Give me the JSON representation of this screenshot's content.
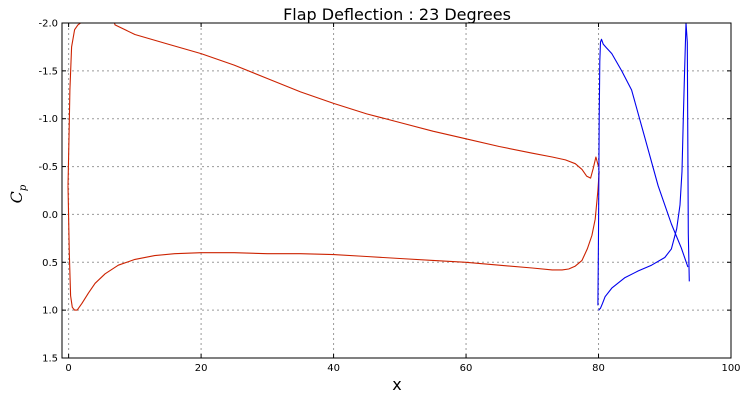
{
  "chart_data": {
    "type": "line",
    "title": "Flap Deflection : 23 Degrees",
    "xlabel": "x",
    "ylabel_main": "C",
    "ylabel_sub": "p",
    "xlim": [
      -1,
      100
    ],
    "ylim": [
      1.5,
      -2.0
    ],
    "y_inverted": true,
    "grid": true,
    "xticks": [
      0,
      20,
      40,
      60,
      80,
      100
    ],
    "xtick_labels": [
      "0",
      "20",
      "40",
      "60",
      "80",
      "100"
    ],
    "yticks": [
      -2.0,
      -1.5,
      -1.0,
      -0.5,
      0.0,
      0.5,
      1.0,
      1.5
    ],
    "ytick_labels": [
      "-2.0",
      "-1.5",
      "-1.0",
      "-0.5",
      "0.0",
      "0.5",
      "1.0",
      "1.5"
    ],
    "series": [
      {
        "color": "#cc2200",
        "segments": [
          {
            "x": [
              -0.1,
              0.05,
              0.2,
              0.45,
              0.9,
              1.4,
              2.2,
              3.2,
              4.8,
              6.8,
              7.0,
              10,
              15,
              20,
              25,
              30,
              35,
              40,
              45,
              50,
              55,
              60,
              65,
              70,
              73,
              75,
              76.5,
              77.5,
              78.2,
              78.8,
              79.2,
              79.6,
              80.0
            ],
            "y": [
              -0.3,
              -0.8,
              -1.3,
              -1.75,
              -1.93,
              -1.98,
              -2.02,
              -2.06,
              -2.09,
              -2.03,
              -1.98,
              -1.88,
              -1.78,
              -1.68,
              -1.56,
              -1.42,
              -1.28,
              -1.16,
              -1.05,
              -0.96,
              -0.87,
              -0.79,
              -0.71,
              -0.64,
              -0.6,
              -0.57,
              -0.53,
              -0.47,
              -0.4,
              -0.38,
              -0.48,
              -0.6,
              -0.5
            ]
          },
          {
            "x": [
              -0.1,
              0.1,
              0.3,
              0.55,
              0.9,
              1.3,
              2.0,
              3.0,
              4.0,
              5.5,
              7.5,
              10,
              13,
              16,
              20,
              25,
              30,
              35,
              40,
              45,
              50,
              55,
              60,
              65,
              70,
              73,
              74.5,
              75.5,
              76.5,
              77.5,
              78.3,
              79.0,
              79.5,
              79.9,
              80.1
            ],
            "y": [
              -0.3,
              0.4,
              0.85,
              0.97,
              1.0,
              1.0,
              0.93,
              0.82,
              0.72,
              0.62,
              0.53,
              0.47,
              0.43,
              0.41,
              0.4,
              0.4,
              0.41,
              0.41,
              0.42,
              0.44,
              0.46,
              0.48,
              0.5,
              0.53,
              0.56,
              0.58,
              0.58,
              0.57,
              0.54,
              0.48,
              0.36,
              0.22,
              0.05,
              -0.25,
              -0.45
            ]
          }
        ]
      },
      {
        "color": "#0000ee",
        "segments": [
          {
            "x": [
              79.9,
              80.0,
              80.1,
              80.2,
              80.3,
              80.45,
              80.7,
              81.2,
              82.0,
              83.5,
              85.0,
              87.0,
              89.0,
              91.0,
              92.5,
              93.5
            ],
            "y": [
              0.95,
              0.2,
              -1.0,
              -1.6,
              -1.8,
              -1.83,
              -1.78,
              -1.74,
              -1.68,
              -1.5,
              -1.3,
              -0.8,
              -0.3,
              0.1,
              0.35,
              0.55
            ]
          },
          {
            "x": [
              80.0,
              80.05,
              80.15,
              80.3,
              80.6,
              81.0,
              82.0,
              84.0,
              86.0,
              88.0,
              90.0,
              91.0,
              91.8,
              92.3,
              92.6,
              92.8,
              93.0,
              93.2,
              93.4,
              93.55,
              93.7
            ],
            "y": [
              1.0,
              1.0,
              0.99,
              0.98,
              0.93,
              0.86,
              0.77,
              0.66,
              0.59,
              0.53,
              0.45,
              0.36,
              0.15,
              -0.1,
              -0.45,
              -1.0,
              -1.5,
              -2.0,
              -1.8,
              0.2,
              0.7
            ]
          }
        ]
      }
    ]
  }
}
